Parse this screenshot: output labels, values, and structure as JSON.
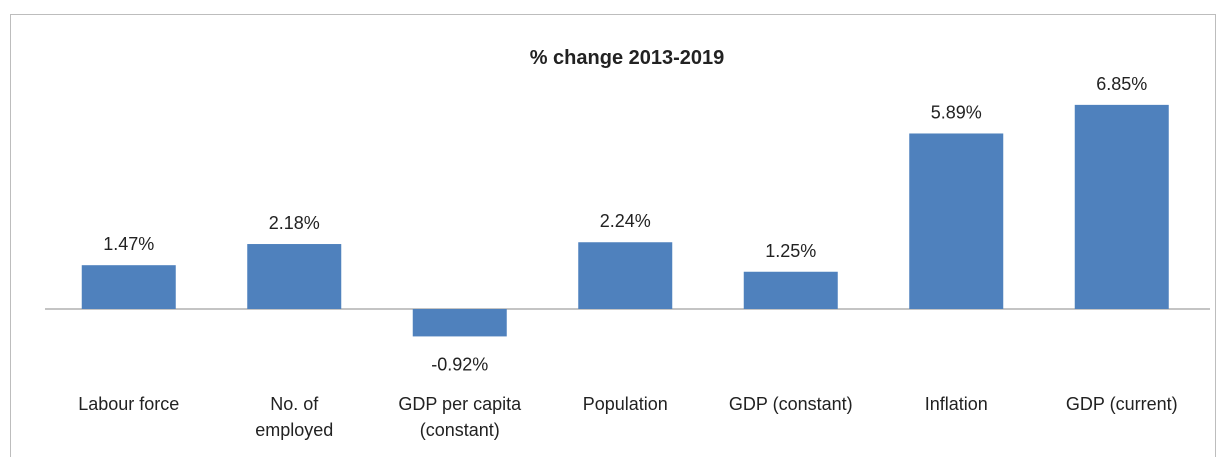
{
  "chart_data": {
    "type": "bar",
    "title": "% change 2013-2019",
    "categories": [
      "Labour force",
      "No. of\nemployed",
      "GDP per capita\n(constant)",
      "Population",
      "GDP (constant)",
      "Inflation",
      "GDP (current)"
    ],
    "values": [
      1.47,
      2.18,
      -0.92,
      2.24,
      1.25,
      5.89,
      6.85
    ],
    "value_labels": [
      "1.47%",
      "2.18%",
      "-0.92%",
      "2.24%",
      "1.25%",
      "5.89%",
      "6.85%"
    ],
    "color": "#4f81bd"
  }
}
